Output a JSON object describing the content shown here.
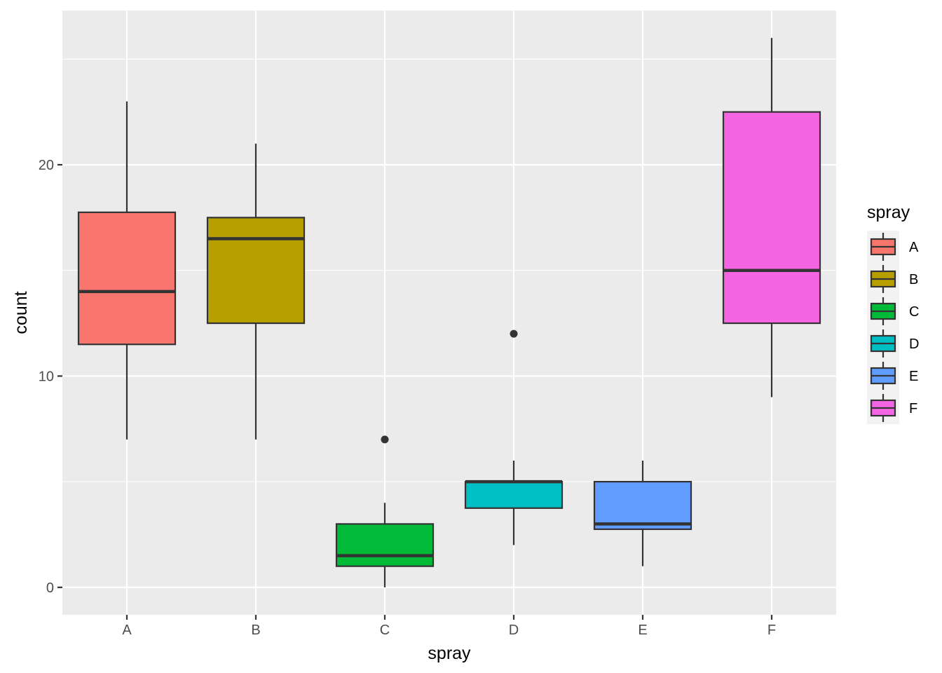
{
  "chart_data": {
    "type": "boxplot",
    "title": "",
    "xlabel": "spray",
    "ylabel": "count",
    "ylim": [
      -1.3,
      27.3
    ],
    "yticks": [
      0,
      10,
      20
    ],
    "ytick_labels": [
      "0",
      "10",
      "20"
    ],
    "categories": [
      "A",
      "B",
      "C",
      "D",
      "E",
      "F"
    ],
    "series": [
      {
        "category": "A",
        "min": 7,
        "q1": 11.5,
        "median": 14,
        "q3": 17.75,
        "max": 23,
        "outliers": [],
        "color": "#F8766D"
      },
      {
        "category": "B",
        "min": 7,
        "q1": 12.5,
        "median": 16.5,
        "q3": 17.5,
        "max": 21,
        "outliers": [],
        "color": "#B79F00"
      },
      {
        "category": "C",
        "min": 0,
        "q1": 1,
        "median": 1.5,
        "q3": 3,
        "max": 4,
        "outliers": [
          7
        ],
        "color": "#00BA38"
      },
      {
        "category": "D",
        "min": 2,
        "q1": 3.75,
        "median": 5,
        "q3": 5,
        "max": 6,
        "outliers": [
          12
        ],
        "color": "#00BFC4"
      },
      {
        "category": "E",
        "min": 1,
        "q1": 2.75,
        "median": 3,
        "q3": 5,
        "max": 6,
        "outliers": [],
        "color": "#619CFF"
      },
      {
        "category": "F",
        "min": 9,
        "q1": 12.5,
        "median": 15,
        "q3": 22.5,
        "max": 26,
        "outliers": [],
        "color": "#F564E3"
      }
    ],
    "grid": true,
    "panel_background": "#EBEBEB",
    "legend": {
      "title": "spray",
      "position": "right",
      "items": [
        "A",
        "B",
        "C",
        "D",
        "E",
        "F"
      ]
    }
  }
}
